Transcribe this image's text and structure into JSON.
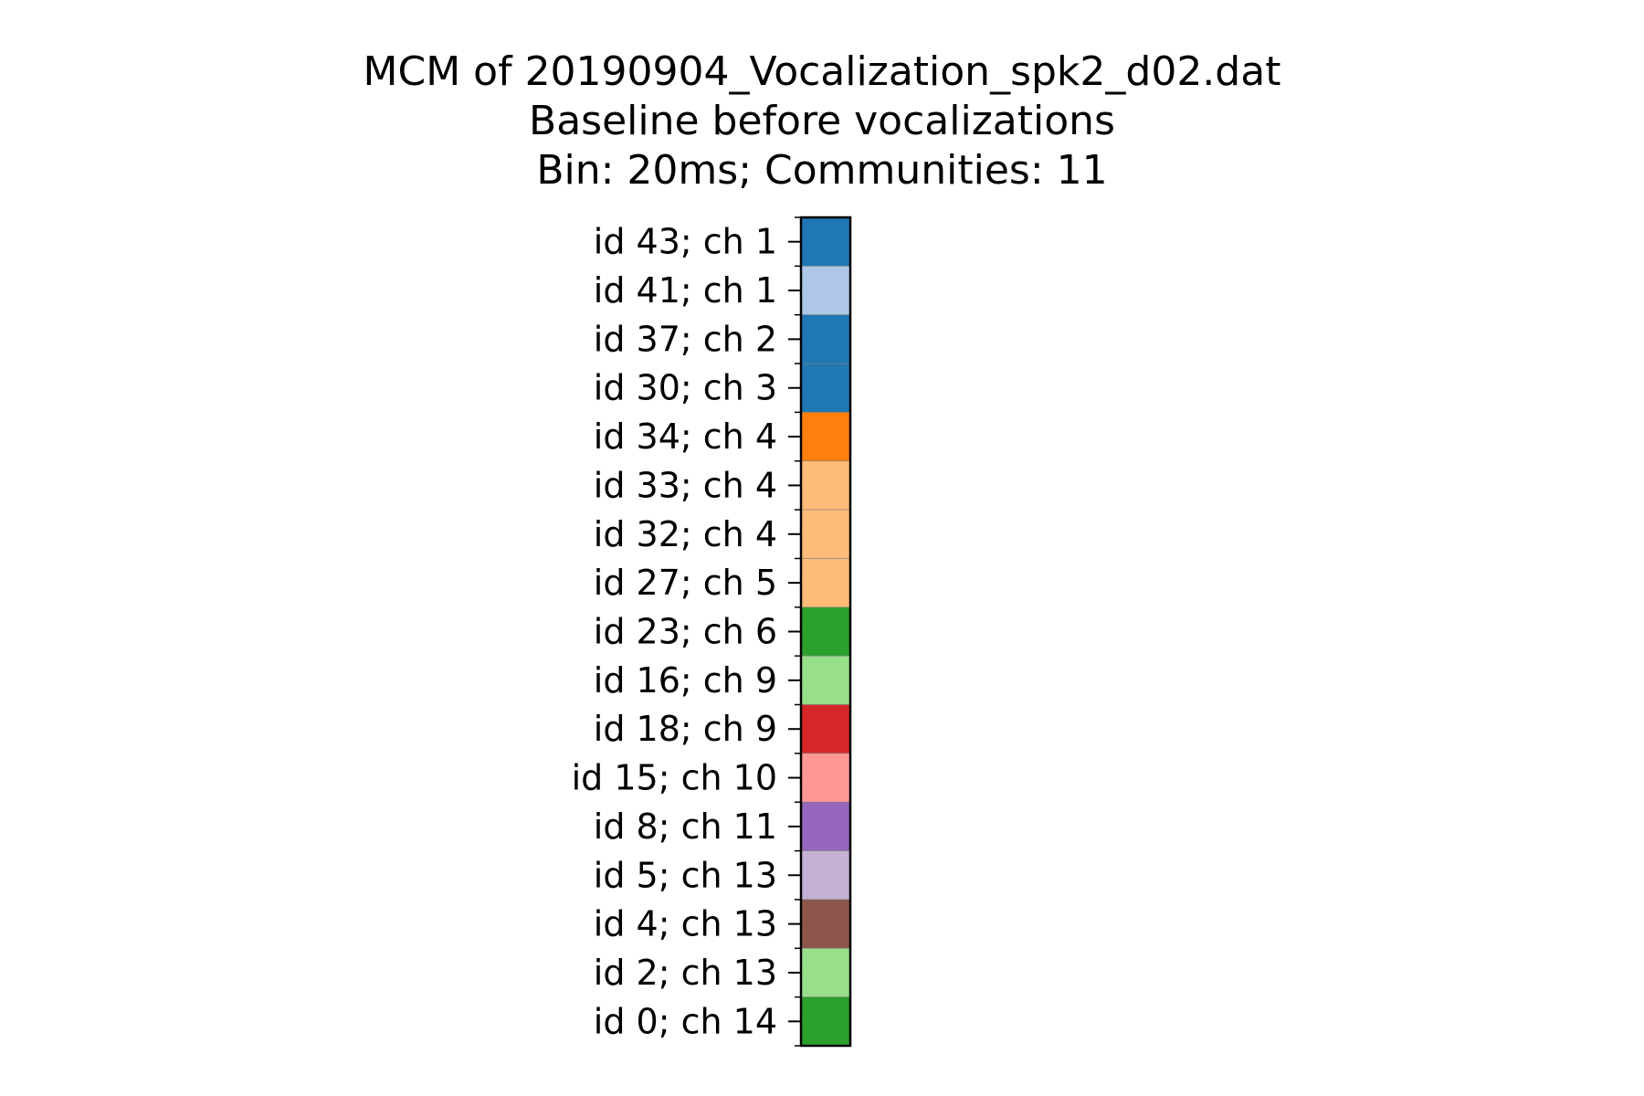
{
  "chart_data": {
    "type": "heatmap",
    "title": "MCM of 20190904_Vocalization_spk2_d02.dat",
    "subtitle": "Baseline before vocalizations",
    "subtitle2": "Bin: 20ms; Communities: 11",
    "xlabel": "",
    "ylabel": "",
    "grid": false,
    "legend": "none",
    "rows": [
      {
        "label": "id 43; ch 1",
        "color": "#1f77b4"
      },
      {
        "label": "id 41; ch 1",
        "color": "#aec7e8"
      },
      {
        "label": "id 37; ch 2",
        "color": "#1f77b4"
      },
      {
        "label": "id 30; ch 3",
        "color": "#1f77b4"
      },
      {
        "label": "id 34; ch 4",
        "color": "#ff7f0e"
      },
      {
        "label": "id 33; ch 4",
        "color": "#ffbb78"
      },
      {
        "label": "id 32; ch 4",
        "color": "#ffbb78"
      },
      {
        "label": "id 27; ch 5",
        "color": "#ffbb78"
      },
      {
        "label": "id 23; ch 6",
        "color": "#2ca02c"
      },
      {
        "label": "id 16; ch 9",
        "color": "#98df8a"
      },
      {
        "label": "id 18; ch 9",
        "color": "#d62728"
      },
      {
        "label": "id 15; ch 10",
        "color": "#ff9896"
      },
      {
        "label": "id 8; ch 11",
        "color": "#9467bd"
      },
      {
        "label": "id 5; ch 13",
        "color": "#c5b0d5"
      },
      {
        "label": "id 4; ch 13",
        "color": "#8c564b"
      },
      {
        "label": "id 2; ch 13",
        "color": "#98df8a"
      },
      {
        "label": "id 0; ch 14",
        "color": "#2ca02c"
      }
    ]
  }
}
